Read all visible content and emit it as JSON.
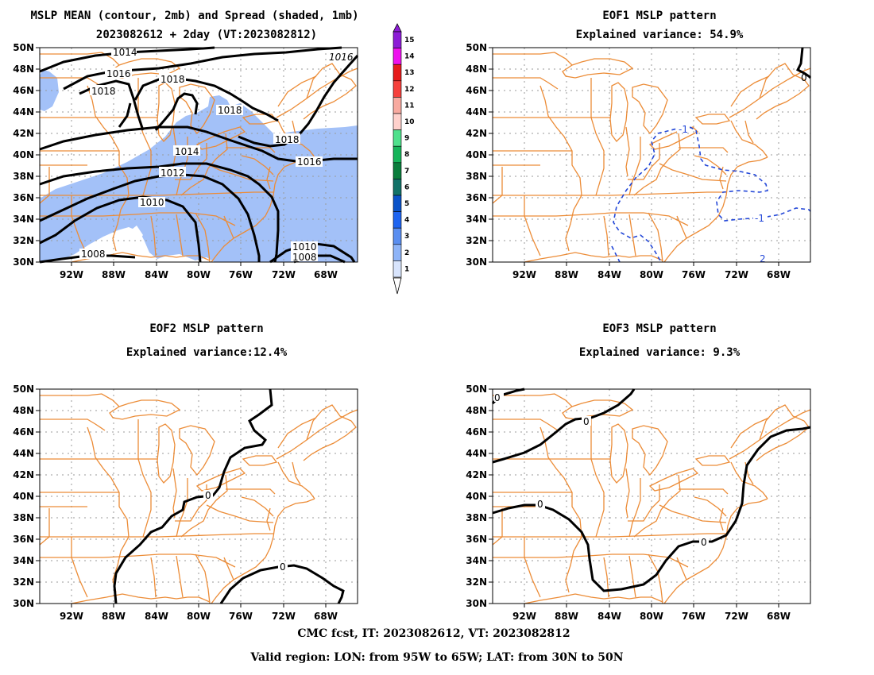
{
  "panels": [
    {
      "id": "mean",
      "title_line1": "MSLP MEAN (contour, 2mb) and Spread (shaded, 1mb)",
      "title_line2": "2023082612 + 2day (VT:2023082812)",
      "contour_labels": [
        "1014",
        "1016",
        "1018",
        "1018",
        "1016",
        "1018",
        "1018",
        "1014",
        "1012",
        "1016",
        "1010",
        "1008",
        "1010",
        "1008"
      ]
    },
    {
      "id": "eof1",
      "title_line1": "EOF1 MSLP pattern",
      "title_line2": "Explained variance: 54.9%",
      "contour_labels": [
        "-1",
        "-1",
        "0",
        "2"
      ]
    },
    {
      "id": "eof2",
      "title_line1": "EOF2 MSLP pattern",
      "title_line2": "Explained variance:12.4%",
      "contour_labels": [
        "0",
        "0"
      ]
    },
    {
      "id": "eof3",
      "title_line1": "EOF3 MSLP pattern",
      "title_line2": "Explained variance: 9.3%",
      "contour_labels": [
        "0",
        "0",
        "0",
        "0"
      ]
    }
  ],
  "axes": {
    "lat_ticks": [
      "50N",
      "48N",
      "46N",
      "44N",
      "42N",
      "40N",
      "38N",
      "36N",
      "34N",
      "32N",
      "30N"
    ],
    "lon_ticks": [
      "92W",
      "88W",
      "84W",
      "80W",
      "76W",
      "72W",
      "68W"
    ]
  },
  "colorbar": {
    "labels": [
      "15",
      "14",
      "13",
      "12",
      "11",
      "10",
      "9",
      "8",
      "7",
      "6",
      "5",
      "4",
      "3",
      "2",
      "1"
    ],
    "colors": [
      "#8c1cd6",
      "#ee12ee",
      "#e61b1b",
      "#f5403c",
      "#f8aaa0",
      "#ffd1cc",
      "#4fe08c",
      "#16b45a",
      "#0a7d3c",
      "#127268",
      "#0a52c8",
      "#1e64f0",
      "#5a8ef0",
      "#8eb4f8",
      "#d8e4fc"
    ]
  },
  "shading_color": "#a3c1f8",
  "border_color": "#ec8c37",
  "footer": {
    "line1": "CMC fcst, IT: 2023082612, VT: 2023082812",
    "line2": "Valid region: LON: from 95W to 65W; LAT: from 30N to 50N"
  }
}
